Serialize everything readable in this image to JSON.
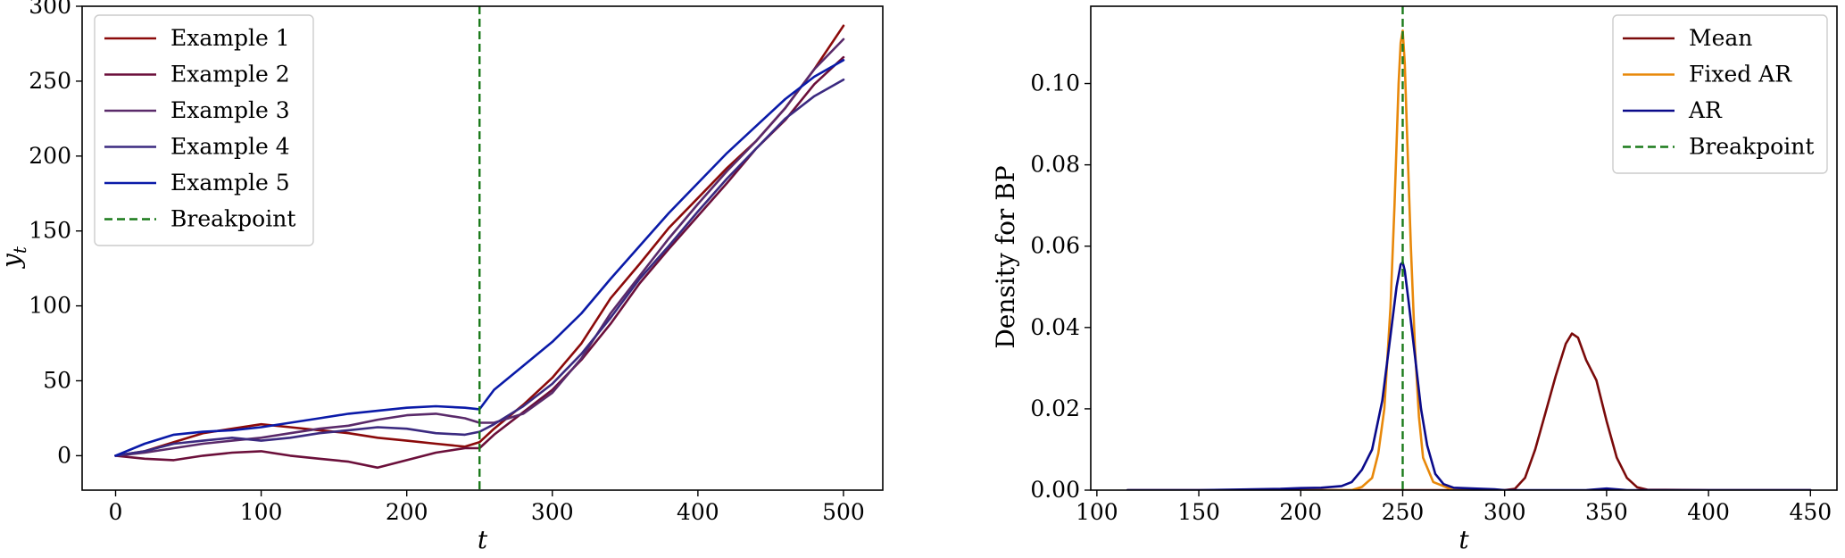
{
  "chart_data": [
    {
      "type": "line",
      "title": "",
      "xlabel": "t",
      "ylabel": "y",
      "ylabel_subscript": "t",
      "xlim": [
        -23,
        527
      ],
      "ylim": [
        -23,
        300
      ],
      "xticks": [
        0,
        100,
        200,
        300,
        400,
        500
      ],
      "yticks": [
        0,
        50,
        100,
        150,
        200,
        250,
        300
      ],
      "xtick_labels": [
        "0",
        "100",
        "200",
        "300",
        "400",
        "500"
      ],
      "ytick_labels": [
        "0",
        "50",
        "100",
        "150",
        "200",
        "250",
        "300"
      ],
      "legend_position": "upper-left",
      "breakpoint": {
        "name": "Breakpoint",
        "x": 250,
        "color": "#1a7a1a"
      },
      "series": [
        {
          "name": "Example 1",
          "color": "#8b0a0a",
          "x": [
            0,
            20,
            40,
            60,
            80,
            100,
            120,
            140,
            160,
            180,
            200,
            220,
            240,
            250,
            260,
            280,
            300,
            320,
            340,
            360,
            380,
            400,
            420,
            440,
            460,
            480,
            500
          ],
          "values": [
            0,
            3,
            9,
            15,
            18,
            21,
            19,
            17,
            15,
            12,
            10,
            8,
            6,
            9,
            18,
            34,
            52,
            75,
            105,
            128,
            152,
            172,
            192,
            210,
            232,
            258,
            287
          ]
        },
        {
          "name": "Example 2",
          "color": "#6b0f3a",
          "x": [
            0,
            20,
            40,
            60,
            80,
            100,
            120,
            140,
            160,
            180,
            200,
            220,
            240,
            250,
            260,
            280,
            300,
            320,
            340,
            360,
            380,
            400,
            420,
            440,
            460,
            480,
            500
          ],
          "values": [
            0,
            -2,
            -3,
            0,
            2,
            3,
            0,
            -2,
            -4,
            -8,
            -3,
            2,
            5,
            5,
            14,
            29,
            44,
            64,
            88,
            115,
            138,
            160,
            182,
            205,
            224,
            248,
            266
          ]
        },
        {
          "name": "Example 3",
          "color": "#5a2a6a",
          "x": [
            0,
            20,
            40,
            60,
            80,
            100,
            120,
            140,
            160,
            180,
            200,
            220,
            240,
            250,
            260,
            280,
            300,
            320,
            340,
            360,
            380,
            400,
            420,
            440,
            460,
            480,
            500
          ],
          "values": [
            0,
            2,
            5,
            8,
            10,
            12,
            15,
            18,
            20,
            24,
            27,
            28,
            25,
            22,
            22,
            28,
            42,
            65,
            95,
            120,
            145,
            168,
            190,
            210,
            232,
            258,
            278
          ]
        },
        {
          "name": "Example 4",
          "color": "#3b2a80",
          "x": [
            0,
            20,
            40,
            60,
            80,
            100,
            120,
            140,
            160,
            180,
            200,
            220,
            240,
            250,
            260,
            280,
            300,
            320,
            340,
            360,
            380,
            400,
            420,
            440,
            460,
            480,
            500
          ],
          "values": [
            0,
            3,
            8,
            10,
            12,
            10,
            12,
            15,
            17,
            19,
            18,
            15,
            14,
            16,
            21,
            33,
            48,
            68,
            92,
            118,
            140,
            163,
            185,
            205,
            225,
            240,
            251
          ]
        },
        {
          "name": "Example 5",
          "color": "#0a1aa8",
          "x": [
            0,
            20,
            40,
            60,
            80,
            100,
            120,
            140,
            160,
            180,
            200,
            220,
            240,
            250,
            260,
            280,
            300,
            320,
            340,
            360,
            380,
            400,
            420,
            440,
            460,
            480,
            500
          ],
          "values": [
            0,
            8,
            14,
            16,
            17,
            19,
            22,
            25,
            28,
            30,
            32,
            33,
            32,
            31,
            44,
            60,
            76,
            95,
            118,
            140,
            162,
            182,
            202,
            220,
            238,
            253,
            264
          ]
        }
      ]
    },
    {
      "type": "line",
      "title": "",
      "xlabel": "t",
      "ylabel": "Density for BP",
      "xlim": [
        97,
        463
      ],
      "ylim": [
        0,
        0.119
      ],
      "xticks": [
        100,
        150,
        200,
        250,
        300,
        350,
        400,
        450
      ],
      "yticks": [
        0.0,
        0.02,
        0.04,
        0.06,
        0.08,
        0.1
      ],
      "xtick_labels": [
        "100",
        "150",
        "200",
        "250",
        "300",
        "350",
        "400",
        "450"
      ],
      "ytick_labels": [
        "0.00",
        "0.02",
        "0.04",
        "0.06",
        "0.08",
        "0.10"
      ],
      "legend_position": "upper-right",
      "breakpoint": {
        "name": "Breakpoint",
        "x": 250,
        "color": "#1a7a1a"
      },
      "series": [
        {
          "name": "Mean",
          "color": "#7a0a0a",
          "x": [
            115,
            200,
            280,
            300,
            305,
            310,
            315,
            320,
            325,
            330,
            333,
            336,
            340,
            345,
            350,
            355,
            360,
            365,
            370,
            400,
            450
          ],
          "values": [
            0,
            0,
            0,
            0,
            0.0003,
            0.003,
            0.01,
            0.019,
            0.028,
            0.036,
            0.0385,
            0.0375,
            0.032,
            0.027,
            0.017,
            0.008,
            0.003,
            0.0007,
            0.0001,
            0,
            0
          ]
        },
        {
          "name": "Fixed AR",
          "color": "#e8880a",
          "x": [
            200,
            225,
            230,
            235,
            238,
            241,
            244,
            246,
            248,
            249,
            250,
            251,
            252,
            254,
            256,
            258,
            260,
            265,
            275,
            300
          ],
          "values": [
            0,
            0,
            0.0008,
            0.003,
            0.009,
            0.02,
            0.045,
            0.07,
            0.1,
            0.11,
            0.113,
            0.105,
            0.09,
            0.06,
            0.035,
            0.018,
            0.008,
            0.002,
            0,
            0
          ]
        },
        {
          "name": "AR",
          "color": "#0a0a8a",
          "x": [
            115,
            150,
            190,
            200,
            210,
            220,
            225,
            230,
            235,
            240,
            244,
            247,
            249,
            250,
            251,
            253,
            256,
            259,
            262,
            266,
            270,
            275,
            285,
            295,
            300,
            340,
            350,
            360,
            380,
            450
          ],
          "values": [
            0,
            0,
            0.0003,
            0.0005,
            0.0006,
            0.001,
            0.002,
            0.005,
            0.01,
            0.022,
            0.038,
            0.05,
            0.0555,
            0.056,
            0.054,
            0.046,
            0.033,
            0.02,
            0.011,
            0.004,
            0.0015,
            0.0006,
            0.0004,
            0.0002,
            0,
            0,
            0.0004,
            0,
            0,
            0
          ]
        }
      ]
    }
  ]
}
